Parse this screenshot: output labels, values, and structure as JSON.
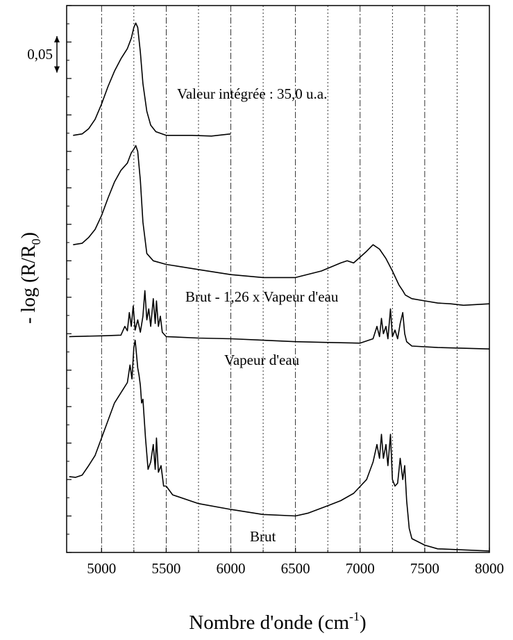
{
  "chart_data": {
    "type": "line",
    "xlabel": {
      "text": "Nombre d'onde (cm",
      "sup": "-1",
      "end": ")"
    },
    "ylabel": {
      "text": "- log (R/R",
      "sub": "0",
      "end": ")"
    },
    "xlim": [
      4730,
      8000
    ],
    "ylim": [
      0,
      0.75
    ],
    "xticks": [
      5000,
      5500,
      6000,
      6500,
      7000,
      7500,
      8000
    ],
    "minor_xticks": [
      5250,
      5750,
      6250,
      6750,
      7250,
      7750
    ],
    "yticks": [
      0,
      0.05,
      0.1,
      0.15,
      0.2,
      0.25,
      0.3,
      0.35,
      0.4,
      0.45,
      0.5,
      0.55,
      0.6,
      0.65,
      0.7,
      0.75
    ],
    "grid": true,
    "scale_bar": {
      "value": 0.05,
      "label": "0,05"
    },
    "annotations": [
      "Valeur intégrée : 35,0 u.a."
    ],
    "series": [
      {
        "color": "#000000",
        "x": [
          4780,
          4850,
          4900,
          4950,
          5000,
          5050,
          5100,
          5150,
          5200,
          5230,
          5250,
          5265,
          5280,
          5300,
          5320,
          5350,
          5380,
          5420,
          5500,
          5700,
          5850,
          6000
        ],
        "values": [
          0.572,
          0.574,
          0.581,
          0.594,
          0.615,
          0.639,
          0.66,
          0.677,
          0.691,
          0.705,
          0.72,
          0.726,
          0.72,
          0.686,
          0.643,
          0.605,
          0.586,
          0.577,
          0.572,
          0.572,
          0.571,
          0.574
        ]
      },
      {
        "name": "Brut - 1,26 x Vapeur d'eau",
        "color": "#000000",
        "x": [
          4780,
          4850,
          4900,
          4950,
          5000,
          5050,
          5100,
          5150,
          5200,
          5230,
          5250,
          5265,
          5280,
          5300,
          5320,
          5350,
          5400,
          5500,
          5750,
          6000,
          6250,
          6500,
          6700,
          6850,
          6900,
          6950,
          7000,
          7050,
          7100,
          7150,
          7200,
          7250,
          7300,
          7330,
          7350,
          7400,
          7500,
          7600,
          7700,
          7800,
          8000
        ],
        "values": [
          0.422,
          0.424,
          0.432,
          0.443,
          0.462,
          0.486,
          0.508,
          0.524,
          0.534,
          0.548,
          0.553,
          0.558,
          0.55,
          0.51,
          0.453,
          0.41,
          0.4,
          0.395,
          0.388,
          0.381,
          0.377,
          0.377,
          0.386,
          0.397,
          0.4,
          0.397,
          0.405,
          0.413,
          0.422,
          0.416,
          0.403,
          0.386,
          0.367,
          0.359,
          0.353,
          0.348,
          0.345,
          0.342,
          0.341,
          0.339,
          0.341
        ]
      },
      {
        "name": "Vapeur d'eau",
        "color": "#000000",
        "x": [
          4750,
          5000,
          5150,
          5180,
          5200,
          5215,
          5230,
          5245,
          5260,
          5280,
          5300,
          5320,
          5335,
          5350,
          5365,
          5380,
          5400,
          5415,
          5425,
          5440,
          5455,
          5470,
          5500,
          5750,
          6000,
          6250,
          6500,
          6750,
          7000,
          7100,
          7130,
          7150,
          7165,
          7180,
          7200,
          7215,
          7235,
          7250,
          7270,
          7290,
          7310,
          7330,
          7345,
          7360,
          7400,
          7600,
          8000
        ],
        "values": [
          0.296,
          0.297,
          0.298,
          0.31,
          0.304,
          0.329,
          0.31,
          0.338,
          0.305,
          0.319,
          0.302,
          0.324,
          0.359,
          0.319,
          0.334,
          0.31,
          0.348,
          0.314,
          0.345,
          0.31,
          0.324,
          0.302,
          0.296,
          0.294,
          0.293,
          0.291,
          0.289,
          0.288,
          0.287,
          0.293,
          0.31,
          0.296,
          0.321,
          0.3,
          0.31,
          0.293,
          0.334,
          0.296,
          0.305,
          0.293,
          0.314,
          0.329,
          0.3,
          0.289,
          0.283,
          0.281,
          0.279
        ]
      },
      {
        "name": "Brut",
        "color": "#000000",
        "x": [
          4750,
          4800,
          4850,
          4900,
          4950,
          5000,
          5050,
          5100,
          5150,
          5200,
          5220,
          5235,
          5250,
          5260,
          5270,
          5280,
          5290,
          5300,
          5310,
          5320,
          5340,
          5360,
          5380,
          5400,
          5415,
          5425,
          5440,
          5460,
          5480,
          5500,
          5550,
          5750,
          6000,
          6250,
          6500,
          6600,
          6750,
          6850,
          6950,
          7050,
          7100,
          7130,
          7150,
          7165,
          7180,
          7200,
          7215,
          7235,
          7250,
          7270,
          7290,
          7310,
          7330,
          7345,
          7360,
          7380,
          7400,
          7500,
          7600,
          8000
        ],
        "values": [
          0.104,
          0.103,
          0.106,
          0.119,
          0.133,
          0.157,
          0.181,
          0.205,
          0.219,
          0.233,
          0.257,
          0.238,
          0.281,
          0.291,
          0.272,
          0.253,
          0.243,
          0.229,
          0.205,
          0.21,
          0.157,
          0.114,
          0.124,
          0.148,
          0.114,
          0.157,
          0.11,
          0.119,
          0.091,
          0.091,
          0.079,
          0.067,
          0.059,
          0.052,
          0.05,
          0.054,
          0.064,
          0.071,
          0.081,
          0.1,
          0.124,
          0.148,
          0.129,
          0.162,
          0.129,
          0.148,
          0.119,
          0.162,
          0.1,
          0.091,
          0.095,
          0.129,
          0.1,
          0.119,
          0.071,
          0.033,
          0.019,
          0.01,
          0.005,
          0.002
        ]
      }
    ]
  }
}
